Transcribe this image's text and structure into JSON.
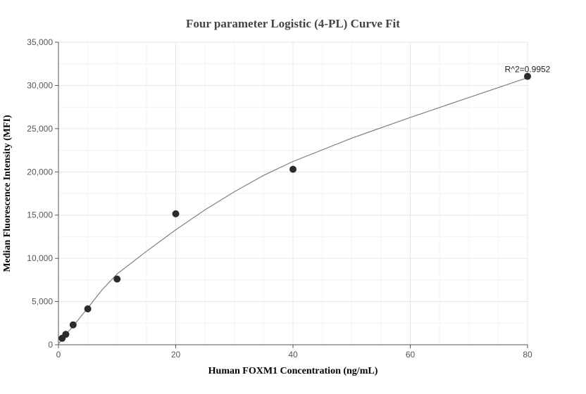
{
  "chart_data": {
    "type": "scatter",
    "title": "Four parameter Logistic (4-PL) Curve Fit",
    "xlabel": "Human FOXM1 Concentration (ng/mL)",
    "ylabel": "Median Fluorescence Intensity (MFI)",
    "xlim": [
      0,
      80
    ],
    "ylim": [
      0,
      35000
    ],
    "x_ticks": [
      0,
      20,
      40,
      60,
      80
    ],
    "x_tick_labels": [
      "0",
      "20",
      "40",
      "60",
      "80"
    ],
    "y_ticks": [
      0,
      5000,
      10000,
      15000,
      20000,
      25000,
      30000,
      35000
    ],
    "y_tick_labels": [
      "0",
      "5,000",
      "10,000",
      "15,000",
      "20,000",
      "25,000",
      "30,000",
      "35,000"
    ],
    "grid": true,
    "points": [
      {
        "x": 0.625,
        "y": 750
      },
      {
        "x": 1.25,
        "y": 1200
      },
      {
        "x": 2.5,
        "y": 2300
      },
      {
        "x": 5,
        "y": 4150
      },
      {
        "x": 10,
        "y": 7600
      },
      {
        "x": 20,
        "y": 15150
      },
      {
        "x": 40,
        "y": 20300
      },
      {
        "x": 80,
        "y": 31050
      }
    ],
    "fit_curve": {
      "x": [
        0,
        0.625,
        1.25,
        2.5,
        5,
        7.5,
        10,
        15,
        20,
        25,
        30,
        35,
        40,
        50,
        60,
        70,
        80
      ],
      "y": [
        100,
        600,
        1200,
        2150,
        4250,
        6400,
        8200,
        10800,
        13300,
        15600,
        17700,
        19600,
        21200,
        23900,
        26300,
        28600,
        30900
      ]
    },
    "annotation": "R^2=0.9952",
    "colors": {
      "points": "#2b2b2b",
      "fit_line": "#7f7f7f",
      "grid": "#e6e6e6"
    }
  }
}
